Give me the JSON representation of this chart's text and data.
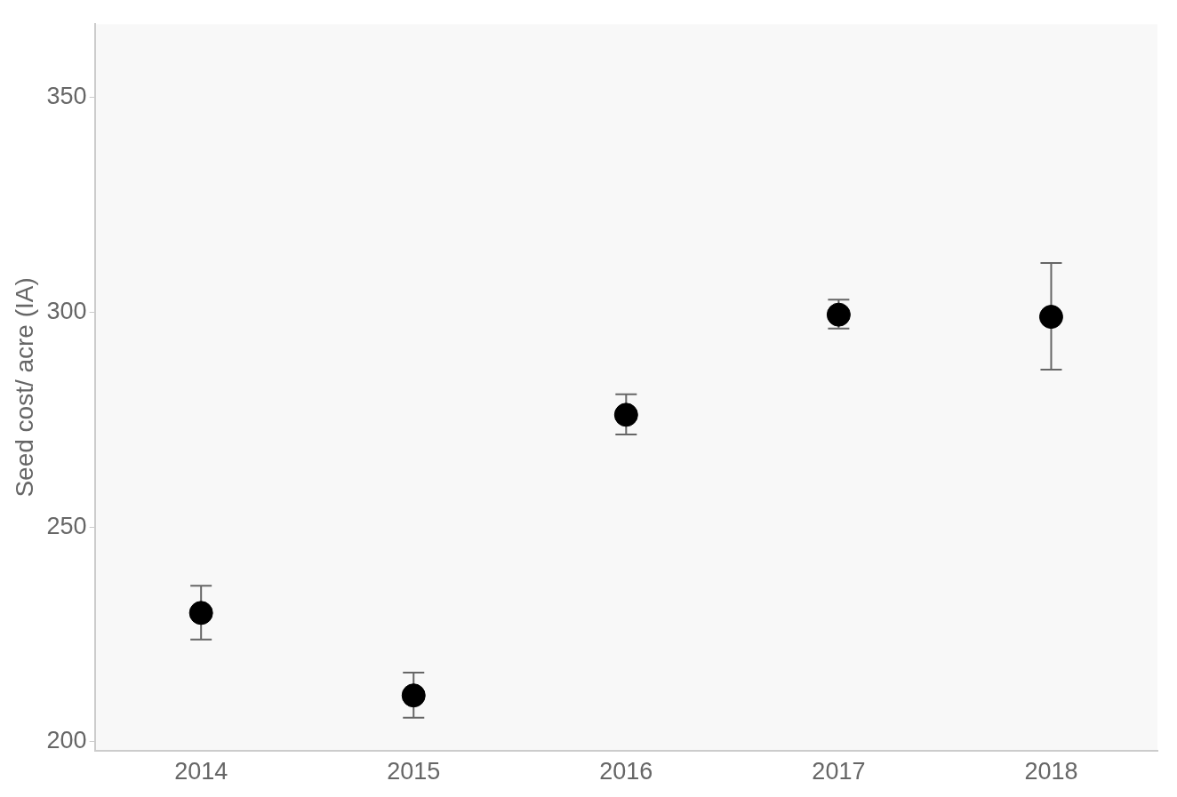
{
  "chart_data": {
    "type": "scatter",
    "ylabel": "Seed cost/ acre (IA)",
    "categories": [
      "2014",
      "2015",
      "2016",
      "2017",
      "2018"
    ],
    "values": [
      230.0,
      210.8,
      276.1,
      299.4,
      298.9
    ],
    "errors": [
      [
        223.8,
        236.3
      ],
      [
        205.6,
        216.1
      ],
      [
        271.5,
        280.9
      ],
      [
        296.2,
        302.9
      ],
      [
        286.6,
        311.4
      ]
    ],
    "color": "#000000",
    "marker": "circle",
    "grid": false,
    "legend": false,
    "ylim": [
      198,
      367
    ],
    "yticks": [
      200,
      250,
      300,
      350
    ]
  }
}
